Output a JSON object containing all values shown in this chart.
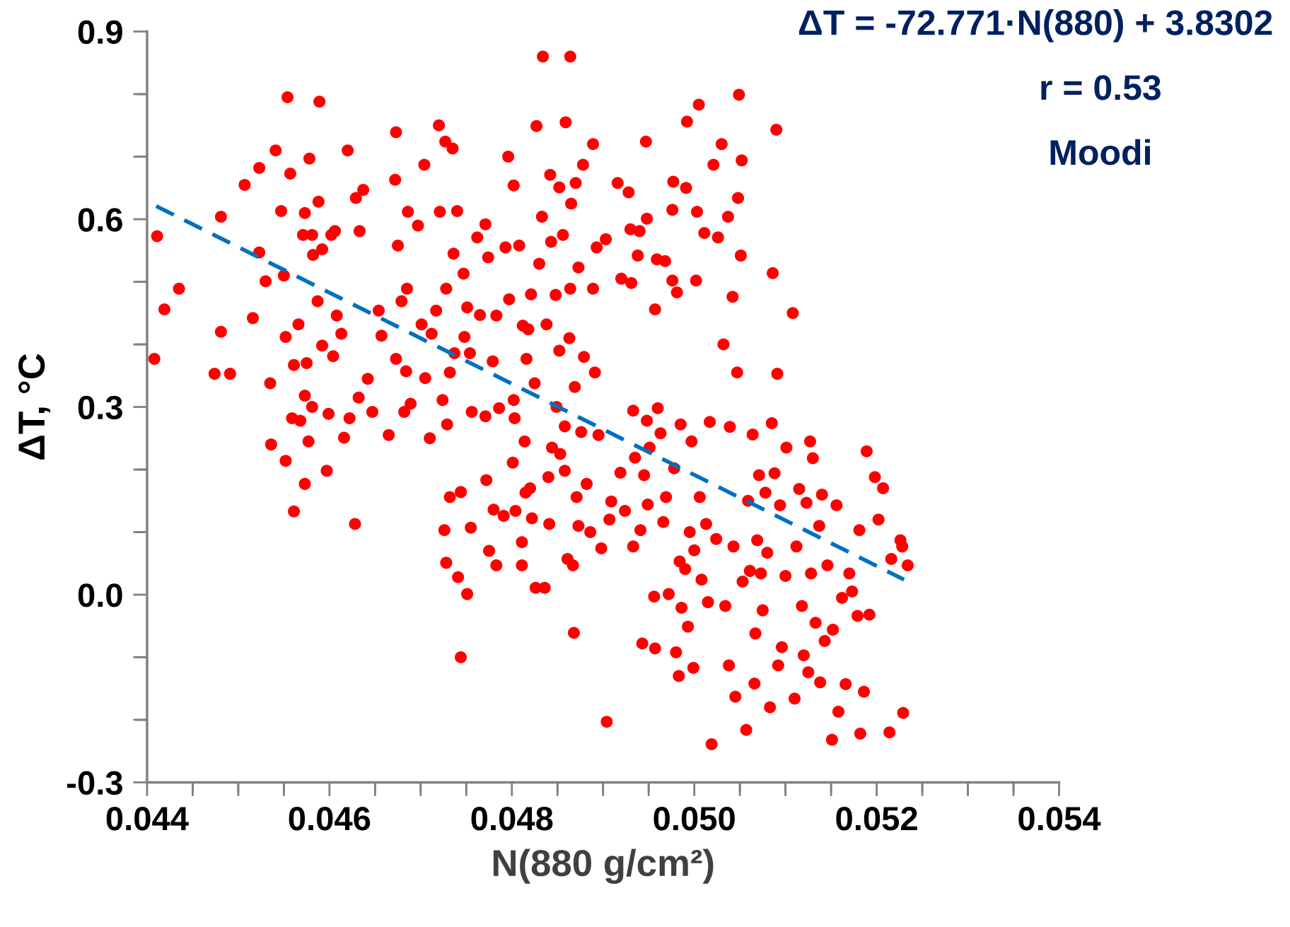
{
  "chart_data": {
    "type": "scatter",
    "xlabel": "N(880 g/cm²)",
    "ylabel": "ΔT, °C",
    "annotations": [
      "ΔT = -72.771·N(880) + 3.8302",
      "r = 0.53",
      "Moodi"
    ],
    "xlim": [
      0.044,
      0.054
    ],
    "ylim": [
      -0.3,
      0.9
    ],
    "xticks": [
      {
        "value": 0.044,
        "label": "0.044"
      },
      {
        "value": 0.0445,
        "label": null
      },
      {
        "value": 0.045,
        "label": null
      },
      {
        "value": 0.0455,
        "label": null
      },
      {
        "value": 0.046,
        "label": "0.046"
      },
      {
        "value": 0.0465,
        "label": null
      },
      {
        "value": 0.047,
        "label": null
      },
      {
        "value": 0.0475,
        "label": null
      },
      {
        "value": 0.048,
        "label": "0.048"
      },
      {
        "value": 0.0485,
        "label": null
      },
      {
        "value": 0.049,
        "label": null
      },
      {
        "value": 0.0495,
        "label": null
      },
      {
        "value": 0.05,
        "label": "0.050"
      },
      {
        "value": 0.0505,
        "label": null
      },
      {
        "value": 0.051,
        "label": null
      },
      {
        "value": 0.0515,
        "label": null
      },
      {
        "value": 0.052,
        "label": "0.052"
      },
      {
        "value": 0.0525,
        "label": null
      },
      {
        "value": 0.053,
        "label": null
      },
      {
        "value": 0.0535,
        "label": null
      },
      {
        "value": 0.054,
        "label": "0.054"
      }
    ],
    "yticks": [
      {
        "value": -0.3,
        "label": "-0.3"
      },
      {
        "value": -0.2,
        "label": null
      },
      {
        "value": -0.1,
        "label": null
      },
      {
        "value": 0.0,
        "label": "0.0"
      },
      {
        "value": 0.1,
        "label": null
      },
      {
        "value": 0.2,
        "label": null
      },
      {
        "value": 0.3,
        "label": "0.3"
      },
      {
        "value": 0.4,
        "label": null
      },
      {
        "value": 0.5,
        "label": null
      },
      {
        "value": 0.6,
        "label": "0.6"
      },
      {
        "value": 0.7,
        "label": null
      },
      {
        "value": 0.8,
        "label": null
      },
      {
        "value": 0.9,
        "label": "0.9"
      }
    ],
    "grid": false,
    "legend": false,
    "series": [
      {
        "color": "#ff0000",
        "marker": "circle",
        "x": [
          0.04408,
          0.04411,
          0.04419,
          0.04435,
          0.04474,
          0.04481,
          0.04481,
          0.04491,
          0.04507,
          0.04516,
          0.04523,
          0.04523,
          0.0453,
          0.04535,
          0.04536,
          0.04541,
          0.04547,
          0.0455,
          0.04552,
          0.04552,
          0.04554,
          0.04557,
          0.04559,
          0.04561,
          0.04561,
          0.04566,
          0.04568,
          0.04571,
          0.04573,
          0.04573,
          0.04573,
          0.04575,
          0.04577,
          0.04578,
          0.04581,
          0.04582,
          0.04581,
          0.04588,
          0.04589,
          0.04587,
          0.04592,
          0.04592,
          0.04597,
          0.04599,
          0.04604,
          0.04602,
          0.04606,
          0.04608,
          0.04613,
          0.04616,
          0.0462,
          0.04622,
          0.04628,
          0.04629,
          0.04632,
          0.04633,
          0.04637,
          0.04642,
          0.04647,
          0.04654,
          0.04657,
          0.04665,
          0.04672,
          0.04673,
          0.04675,
          0.04673,
          0.04679,
          0.04682,
          0.04684,
          0.04686,
          0.04685,
          0.04689,
          0.04697,
          0.04701,
          0.04704,
          0.04705,
          0.0471,
          0.04712,
          0.04717,
          0.0472,
          0.04721,
          0.04724,
          0.04726,
          0.04728,
          0.04727,
          0.04729,
          0.04728,
          0.04732,
          0.04732,
          0.04735,
          0.04737,
          0.04736,
          0.0474,
          0.04741,
          0.04744,
          0.04744,
          0.04747,
          0.04748,
          0.04751,
          0.04751,
          0.04754,
          0.04755,
          0.04756,
          0.04762,
          0.04765,
          0.04771,
          0.04771,
          0.04772,
          0.04774,
          0.04775,
          0.04779,
          0.0478,
          0.04783,
          0.04783,
          0.04786,
          0.04791,
          0.04796,
          0.04793,
          0.04797,
          0.04801,
          0.04802,
          0.04803,
          0.04802,
          0.04804,
          0.04808,
          0.04812,
          0.04811,
          0.04811,
          0.04814,
          0.04815,
          0.04816,
          0.04818,
          0.0482,
          0.04821,
          0.04822,
          0.04825,
          0.04826,
          0.04827,
          0.0483,
          0.04833,
          0.04834,
          0.04836,
          0.04838,
          0.0484,
          0.04841,
          0.04842,
          0.04843,
          0.04844,
          0.04848,
          0.04849,
          0.04852,
          0.04852,
          0.04853,
          0.04856,
          0.04858,
          0.04858,
          0.04859,
          0.04861,
          0.04864,
          0.04864,
          0.04865,
          0.04863,
          0.04867,
          0.04868,
          0.04869,
          0.0487,
          0.04871,
          0.04873,
          0.04873,
          0.04876,
          0.04878,
          0.04879,
          0.04882,
          0.04886,
          0.04889,
          0.04889,
          0.04891,
          0.04893,
          0.04895,
          0.04898,
          0.04903,
          0.04904,
          0.04907,
          0.04909,
          0.04916,
          0.04919,
          0.0492,
          0.04924,
          0.04928,
          0.0493,
          0.04931,
          0.04933,
          0.04933,
          0.04935,
          0.04938,
          0.0494,
          0.04941,
          0.04943,
          0.04945,
          0.04947,
          0.04948,
          0.04948,
          0.04949,
          0.04951,
          0.04956,
          0.04957,
          0.04957,
          0.04959,
          0.0496,
          0.04963,
          0.04966,
          0.04968,
          0.04969,
          0.04972,
          0.04976,
          0.04977,
          0.04976,
          0.04978,
          0.0498,
          0.04981,
          0.04983,
          0.04984,
          0.04985,
          0.04986,
          0.0499,
          0.04991,
          0.04992,
          0.04993,
          0.04995,
          0.04997,
          0.04999,
          0.05,
          0.05002,
          0.05003,
          0.05005,
          0.05006,
          0.05008,
          0.05011,
          0.05013,
          0.05015,
          0.05017,
          0.05019,
          0.05021,
          0.05024,
          0.05026,
          0.0503,
          0.05032,
          0.05034,
          0.05037,
          0.05039,
          0.05038,
          0.05042,
          0.05043,
          0.05045,
          0.05047,
          0.05048,
          0.05049,
          0.05051,
          0.05052,
          0.05053,
          0.05057,
          0.05059,
          0.05061,
          0.05064,
          0.05066,
          0.05067,
          0.05069,
          0.05071,
          0.05073,
          0.05075,
          0.05078,
          0.0508,
          0.05083,
          0.05085,
          0.05086,
          0.05088,
          0.0509,
          0.05091,
          0.05092,
          0.05094,
          0.05096,
          0.051,
          0.05101,
          0.05108,
          0.0511,
          0.05112,
          0.05115,
          0.05118,
          0.0512,
          0.05123,
          0.05125,
          0.05127,
          0.05128,
          0.0513,
          0.05133,
          0.05137,
          0.05138,
          0.0514,
          0.05143,
          0.05146,
          0.05151,
          0.05152,
          0.05156,
          0.05158,
          0.05162,
          0.05166,
          0.0517,
          0.05173,
          0.05179,
          0.05181,
          0.05182,
          0.05186,
          0.05189,
          0.05192,
          0.05198,
          0.05202,
          0.05207,
          0.05214,
          0.05216,
          0.05226,
          0.05228,
          0.05229,
          0.05234
        ],
        "values": [
          0.377,
          0.573,
          0.456,
          0.489,
          0.353,
          0.42,
          0.604,
          0.353,
          0.655,
          0.442,
          0.682,
          0.547,
          0.501,
          0.338,
          0.24,
          0.71,
          0.613,
          0.51,
          0.412,
          0.214,
          0.795,
          0.673,
          0.282,
          0.133,
          0.367,
          0.432,
          0.278,
          0.575,
          0.61,
          0.318,
          0.177,
          0.37,
          0.245,
          0.697,
          0.575,
          0.543,
          0.3,
          0.628,
          0.788,
          0.469,
          0.552,
          0.398,
          0.198,
          0.289,
          0.381,
          0.575,
          0.581,
          0.446,
          0.417,
          0.251,
          0.71,
          0.282,
          0.113,
          0.634,
          0.315,
          0.581,
          0.647,
          0.345,
          0.292,
          0.454,
          0.414,
          0.255,
          0.663,
          0.739,
          0.558,
          0.377,
          0.469,
          0.292,
          0.357,
          0.612,
          0.489,
          0.305,
          0.59,
          0.432,
          0.687,
          0.346,
          0.25,
          0.417,
          0.454,
          0.75,
          0.612,
          0.311,
          0.103,
          0.489,
          0.724,
          0.272,
          0.051,
          0.355,
          0.156,
          0.713,
          0.386,
          0.545,
          0.613,
          0.028,
          0.164,
          -0.1,
          0.513,
          0.412,
          0.001,
          0.459,
          0.386,
          0.107,
          0.292,
          0.571,
          0.447,
          0.592,
          0.285,
          0.183,
          0.539,
          0.07,
          0.373,
          0.136,
          0.446,
          0.047,
          0.298,
          0.126,
          0.7,
          0.555,
          0.472,
          0.211,
          0.654,
          0.282,
          0.311,
          0.134,
          0.558,
          0.43,
          0.084,
          0.047,
          0.245,
          0.163,
          0.377,
          0.424,
          0.17,
          0.48,
          0.122,
          0.338,
          0.011,
          0.749,
          0.529,
          0.604,
          0.86,
          0.011,
          0.432,
          0.188,
          0.113,
          0.671,
          0.564,
          0.235,
          0.479,
          0.3,
          0.651,
          0.39,
          0.225,
          0.575,
          0.269,
          0.198,
          0.755,
          0.057,
          0.86,
          0.489,
          0.625,
          0.41,
          0.047,
          -0.061,
          0.332,
          0.658,
          0.156,
          0.523,
          0.11,
          0.26,
          0.687,
          0.38,
          0.177,
          0.1,
          0.489,
          0.72,
          0.355,
          0.555,
          0.255,
          0.074,
          0.568,
          -0.203,
          0.12,
          0.149,
          0.658,
          0.195,
          0.505,
          0.134,
          0.643,
          0.584,
          0.498,
          0.294,
          0.077,
          0.219,
          0.542,
          0.581,
          0.103,
          -0.078,
          0.191,
          0.724,
          0.601,
          0.278,
          0.144,
          0.235,
          -0.003,
          0.456,
          -0.086,
          0.536,
          0.298,
          0.258,
          0.116,
          0.533,
          0.156,
          0.001,
          0.615,
          0.66,
          0.502,
          0.202,
          -0.092,
          0.483,
          -0.13,
          0.053,
          0.272,
          -0.021,
          0.041,
          0.65,
          0.756,
          -0.051,
          0.1,
          0.245,
          -0.117,
          0.071,
          0.502,
          0.612,
          0.783,
          0.156,
          0.024,
          0.578,
          0.113,
          -0.012,
          0.276,
          -0.239,
          0.687,
          0.089,
          0.571,
          0.72,
          0.4,
          -0.018,
          0.604,
          0.268,
          -0.113,
          0.476,
          0.077,
          -0.163,
          0.355,
          0.634,
          0.799,
          0.542,
          0.694,
          0.021,
          -0.216,
          0.15,
          0.038,
          0.256,
          -0.142,
          -0.062,
          0.087,
          0.191,
          0.034,
          -0.025,
          0.163,
          0.067,
          -0.18,
          0.274,
          0.514,
          0.194,
          0.743,
          0.353,
          -0.113,
          0.143,
          -0.084,
          0.03,
          0.235,
          0.45,
          -0.166,
          0.077,
          0.169,
          -0.018,
          -0.097,
          0.147,
          -0.124,
          0.245,
          0.034,
          0.218,
          -0.045,
          0.11,
          -0.14,
          0.16,
          -0.074,
          0.047,
          -0.232,
          -0.056,
          0.143,
          -0.187,
          -0.005,
          -0.143,
          0.034,
          0.005,
          -0.034,
          0.103,
          -0.222,
          -0.155,
          0.229,
          -0.032,
          0.188,
          0.12,
          0.17,
          -0.22,
          0.057,
          0.087,
          0.077,
          -0.189,
          0.047
        ]
      },
      {
        "type": "line",
        "color": "#0070c0",
        "line_style": "dashed",
        "marker": "none",
        "x": [
          0.0441,
          0.0523
        ],
        "values": [
          0.621,
          0.024
        ]
      }
    ]
  }
}
